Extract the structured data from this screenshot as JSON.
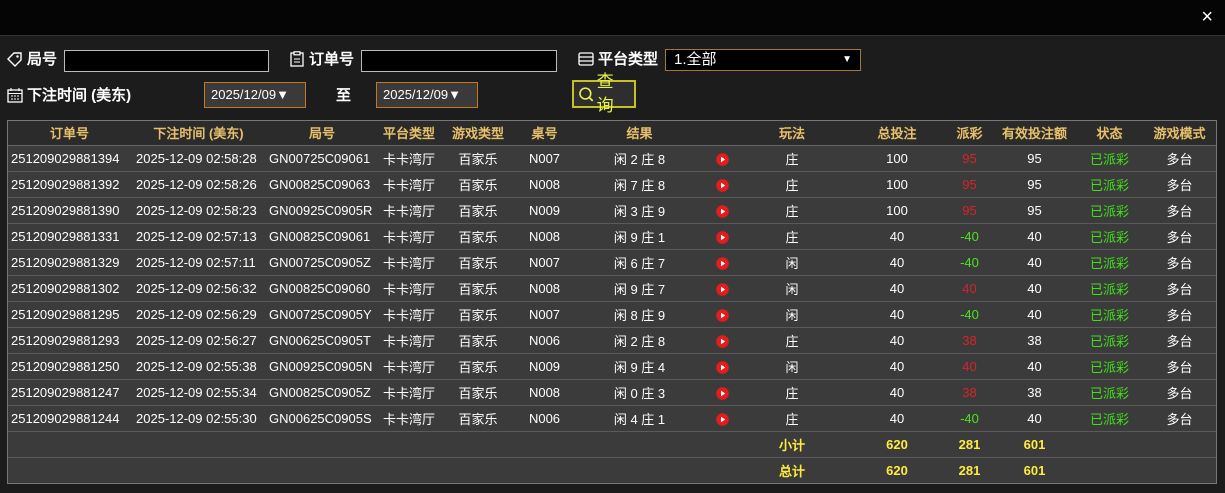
{
  "header": {
    "close": "×"
  },
  "filters": {
    "round_label": "局号",
    "order_label": "订单号",
    "platform_label": "平台类型",
    "platform_value": "1.全部",
    "time_label": "下注时间 (美东)",
    "date_from": "2025/12/09",
    "to_label": "至",
    "date_to": "2025/12/09",
    "query_button": "查询"
  },
  "table": {
    "columns": [
      "订单号",
      "下注时间 (美东)",
      "局号",
      "平台类型",
      "游戏类型",
      "桌号",
      "结果",
      "玩法",
      "总投注",
      "派彩",
      "有效投注额",
      "状态",
      "游戏模式"
    ],
    "rows": [
      [
        "251209029881394",
        "2025-12-09 02:58:28",
        "GN00725C09061",
        "卡卡湾厅",
        "百家乐",
        "N007",
        "闲 2 庄 8",
        "庄",
        "100",
        "95",
        "95",
        "已派彩",
        "多台"
      ],
      [
        "251209029881392",
        "2025-12-09 02:58:26",
        "GN00825C09063",
        "卡卡湾厅",
        "百家乐",
        "N008",
        "闲 7 庄 8",
        "庄",
        "100",
        "95",
        "95",
        "已派彩",
        "多台"
      ],
      [
        "251209029881390",
        "2025-12-09 02:58:23",
        "GN00925C0905R",
        "卡卡湾厅",
        "百家乐",
        "N009",
        "闲 3 庄 9",
        "庄",
        "100",
        "95",
        "95",
        "已派彩",
        "多台"
      ],
      [
        "251209029881331",
        "2025-12-09 02:57:13",
        "GN00825C09061",
        "卡卡湾厅",
        "百家乐",
        "N008",
        "闲 9 庄 1",
        "庄",
        "40",
        "-40",
        "40",
        "已派彩",
        "多台"
      ],
      [
        "251209029881329",
        "2025-12-09 02:57:11",
        "GN00725C0905Z",
        "卡卡湾厅",
        "百家乐",
        "N007",
        "闲 6 庄 7",
        "闲",
        "40",
        "-40",
        "40",
        "已派彩",
        "多台"
      ],
      [
        "251209029881302",
        "2025-12-09 02:56:32",
        "GN00825C09060",
        "卡卡湾厅",
        "百家乐",
        "N008",
        "闲 9 庄 7",
        "闲",
        "40",
        "40",
        "40",
        "已派彩",
        "多台"
      ],
      [
        "251209029881295",
        "2025-12-09 02:56:29",
        "GN00725C0905Y",
        "卡卡湾厅",
        "百家乐",
        "N007",
        "闲 8 庄 9",
        "闲",
        "40",
        "-40",
        "40",
        "已派彩",
        "多台"
      ],
      [
        "251209029881293",
        "2025-12-09 02:56:27",
        "GN00625C0905T",
        "卡卡湾厅",
        "百家乐",
        "N006",
        "闲 2 庄 8",
        "庄",
        "40",
        "38",
        "38",
        "已派彩",
        "多台"
      ],
      [
        "251209029881250",
        "2025-12-09 02:55:38",
        "GN00925C0905N",
        "卡卡湾厅",
        "百家乐",
        "N009",
        "闲 9 庄 4",
        "闲",
        "40",
        "40",
        "40",
        "已派彩",
        "多台"
      ],
      [
        "251209029881247",
        "2025-12-09 02:55:34",
        "GN00825C0905Z",
        "卡卡湾厅",
        "百家乐",
        "N008",
        "闲 0 庄 3",
        "庄",
        "40",
        "38",
        "38",
        "已派彩",
        "多台"
      ],
      [
        "251209029881244",
        "2025-12-09 02:55:30",
        "GN00625C0905S",
        "卡卡湾厅",
        "百家乐",
        "N006",
        "闲 4 庄 1",
        "庄",
        "40",
        "-40",
        "40",
        "已派彩",
        "多台"
      ]
    ],
    "summary": [
      {
        "label": "小计",
        "total_bet": "620",
        "payout": "281",
        "valid_bet": "601"
      },
      {
        "label": "总计",
        "total_bet": "620",
        "payout": "281",
        "valid_bet": "601"
      }
    ]
  }
}
